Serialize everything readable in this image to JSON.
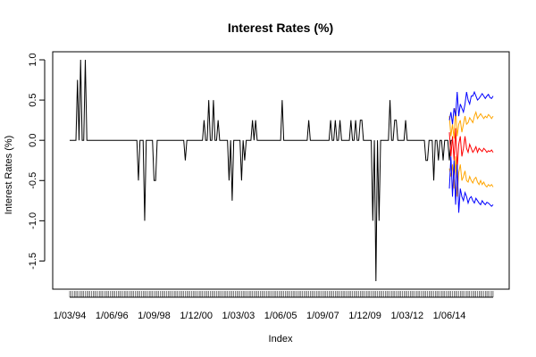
{
  "chart_data": {
    "type": "line",
    "title": "Interest Rates (%)",
    "xlabel": "Index",
    "ylabel": "Interest Rates (%)",
    "ylim": [
      -1.85,
      1.1
    ],
    "y_ticks": [
      -1.5,
      -1.0,
      -0.5,
      0.0,
      0.5,
      1.0
    ],
    "y_tick_labels": [
      "-1.5",
      "-1.0",
      "-0.5",
      "0.0",
      "0.5",
      "1.0"
    ],
    "x_tick_labels": [
      "1/03/94",
      "1/06/96",
      "1/09/98",
      "1/12/00",
      "1/03/03",
      "1/06/05",
      "1/09/07",
      "1/12/09",
      "1/03/12",
      "1/06/14"
    ],
    "grid": false,
    "legend": "none",
    "series": [
      {
        "role": "observed",
        "color": "#000000",
        "x_start": 1,
        "values": [
          0,
          0,
          0,
          0,
          0,
          0.75,
          0,
          1,
          0,
          0,
          1,
          0,
          0,
          0,
          0,
          0,
          0,
          0,
          0,
          0,
          0,
          0,
          0,
          0,
          0,
          0,
          0,
          0,
          0,
          0,
          0,
          0,
          0,
          0,
          0,
          0,
          0,
          0,
          0,
          0,
          0,
          0,
          0,
          0,
          -0.5,
          0,
          0,
          0,
          -1,
          0,
          0,
          0,
          0,
          0,
          -0.5,
          -0.5,
          0,
          0,
          0,
          0,
          0,
          0,
          0,
          0,
          0,
          0,
          0,
          0,
          0,
          0,
          0,
          0,
          0,
          0,
          -0.25,
          0,
          0,
          0,
          0,
          0,
          0,
          0,
          0,
          0,
          0,
          0,
          0.25,
          0,
          0,
          0.5,
          0,
          0,
          0.5,
          0,
          0,
          0.25,
          0,
          0,
          0,
          0,
          0,
          0,
          -0.5,
          0,
          -0.75,
          0,
          0,
          0,
          0,
          0,
          -0.5,
          0,
          -0.25,
          0,
          0,
          0,
          0,
          0.25,
          0,
          0.25,
          0,
          0,
          0,
          0,
          0,
          0,
          0,
          0,
          0,
          0,
          0,
          0,
          0,
          0,
          0,
          0,
          0.5,
          0,
          0,
          0,
          0,
          0,
          0,
          0,
          0,
          0,
          0,
          0,
          0,
          0,
          0,
          0,
          0,
          0.25,
          0,
          0,
          0,
          0,
          0,
          0,
          0,
          0,
          0,
          0,
          0,
          0,
          0,
          0.25,
          0,
          0,
          0.25,
          0,
          0,
          0.25,
          0,
          0,
          0,
          0,
          0,
          0,
          0.25,
          0,
          0,
          0.25,
          0,
          0,
          0.25,
          0.25,
          0,
          0,
          0,
          0,
          0,
          0,
          -1,
          0,
          -1.75,
          0,
          -1,
          0,
          0,
          0,
          0,
          0,
          0,
          0.5,
          0,
          0,
          0.25,
          0.25,
          0,
          0,
          0,
          0,
          0,
          0.25,
          0,
          0,
          0,
          0,
          0,
          0,
          0,
          0,
          0,
          0,
          0,
          0,
          -0.25,
          -0.25,
          0,
          0,
          0,
          -0.5,
          0,
          0,
          -0.25,
          0,
          0,
          -0.25,
          0,
          0,
          0,
          -0.25,
          0,
          0
        ]
      },
      {
        "role": "forecast",
        "color": "#ff0000",
        "x_start": 244,
        "values": [
          0.1,
          -0.2,
          0.05,
          -0.25,
          0.15,
          -0.35,
          -0.05,
          0.05,
          -0.2,
          -0.1,
          0.05,
          -0.1,
          -0.15,
          -0.05,
          -0.1,
          -0.15,
          -0.12,
          -0.08,
          -0.15,
          -0.1,
          -0.12,
          -0.14,
          -0.1,
          -0.12,
          -0.15,
          -0.13,
          -0.14,
          -0.12,
          -0.15
        ]
      },
      {
        "role": "upper 80%",
        "color": "#ffa500",
        "x_start": 244,
        "values": [
          0.3,
          0.05,
          0.2,
          0.02,
          0.4,
          0.05,
          0.2,
          0.25,
          0.1,
          0.2,
          0.3,
          0.2,
          0.22,
          0.28,
          0.25,
          0.22,
          0.3,
          0.35,
          0.27,
          0.3,
          0.33,
          0.3,
          0.27,
          0.3,
          0.28,
          0.32,
          0.3,
          0.27,
          0.3
        ]
      },
      {
        "role": "lower 80%",
        "color": "#ffa500",
        "x_start": 244,
        "values": [
          -0.35,
          -0.45,
          -0.3,
          -0.6,
          -0.2,
          -0.7,
          -0.4,
          -0.3,
          -0.5,
          -0.45,
          -0.38,
          -0.5,
          -0.52,
          -0.45,
          -0.5,
          -0.53,
          -0.48,
          -0.46,
          -0.52,
          -0.55,
          -0.5,
          -0.55,
          -0.52,
          -0.56,
          -0.58,
          -0.55,
          -0.57,
          -0.55,
          -0.58
        ]
      },
      {
        "role": "upper 95%",
        "color": "#0000ff",
        "x_start": 244,
        "values": [
          0.25,
          0.35,
          0.2,
          0.4,
          0.3,
          0.6,
          0.3,
          0.45,
          0.4,
          0.35,
          0.45,
          0.6,
          0.5,
          0.45,
          0.55,
          0.55,
          0.6,
          0.55,
          0.5,
          0.52,
          0.55,
          0.58,
          0.55,
          0.52,
          0.55,
          0.57,
          0.53,
          0.52,
          0.55
        ]
      },
      {
        "role": "lower 95%",
        "color": "#0000ff",
        "x_start": 244,
        "values": [
          -0.6,
          -0.2,
          -0.7,
          -0.25,
          -0.8,
          -0.3,
          -0.9,
          -0.6,
          -0.7,
          -0.75,
          -0.65,
          -0.7,
          -0.78,
          -0.72,
          -0.7,
          -0.75,
          -0.78,
          -0.72,
          -0.75,
          -0.78,
          -0.8,
          -0.75,
          -0.78,
          -0.8,
          -0.77,
          -0.78,
          -0.8,
          -0.82,
          -0.8
        ]
      }
    ]
  }
}
